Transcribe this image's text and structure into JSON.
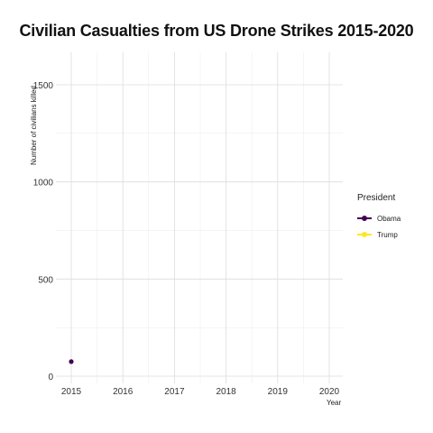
{
  "chart_data": {
    "type": "line",
    "title": "Civilian Casualties from US Drone Strikes 2015-2020",
    "xlabel": "Year",
    "ylabel": "Number of civilians killed",
    "x_ticks": [
      "2015",
      "2016",
      "2017",
      "2018",
      "2019",
      "2020"
    ],
    "y_ticks": [
      "0",
      "500",
      "1000",
      "1500"
    ],
    "xlim": [
      2015,
      2020
    ],
    "ylim": [
      0,
      1500
    ],
    "grid": true,
    "legend": {
      "title": "President",
      "placement": "right",
      "items": [
        {
          "label": "Obama",
          "color": "#440154"
        },
        {
          "label": "Trump",
          "color": "#FDE725"
        }
      ]
    },
    "series": [
      {
        "name": "Obama",
        "color": "#440154",
        "points": [
          {
            "x": 2015,
            "y": 75
          }
        ]
      },
      {
        "name": "Trump",
        "color": "#FDE725",
        "points": []
      }
    ]
  }
}
